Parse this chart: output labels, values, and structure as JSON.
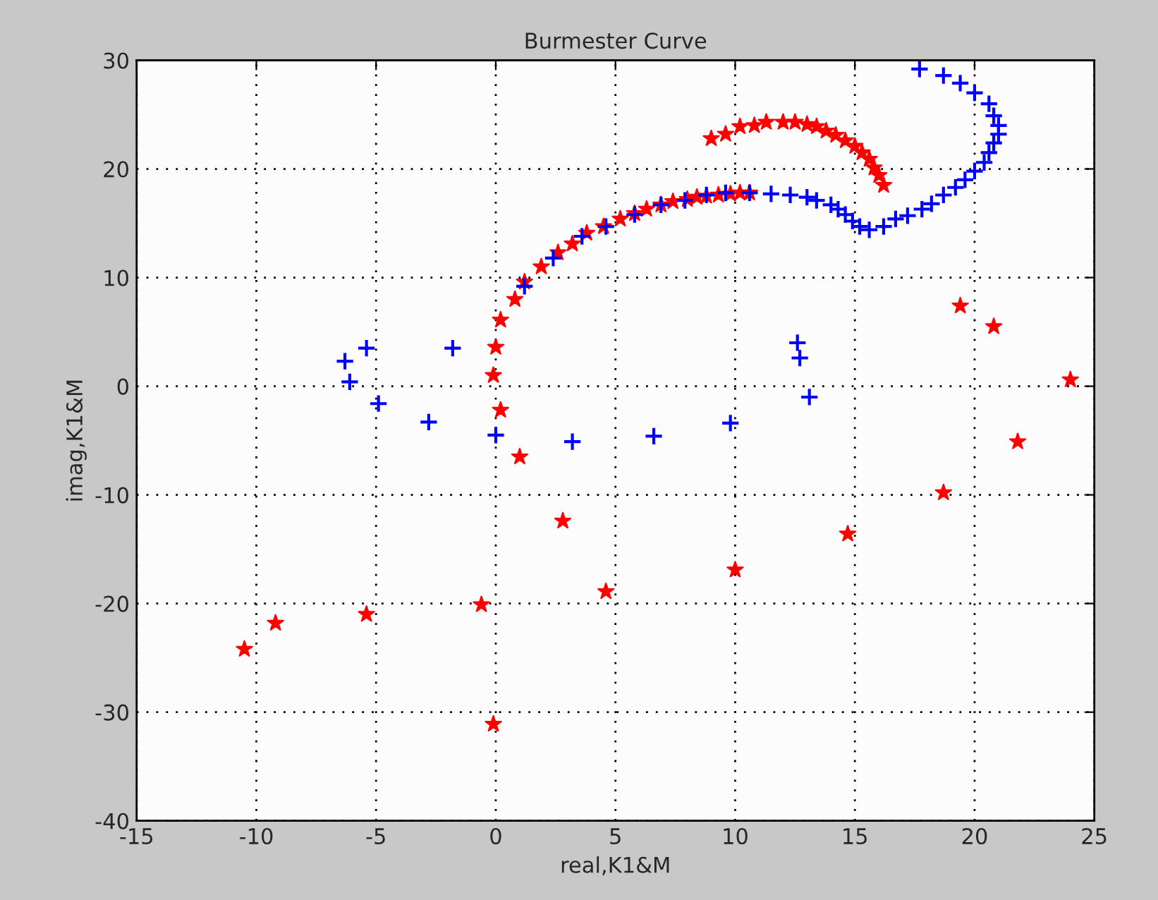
{
  "chart_data": {
    "type": "scatter",
    "title": "Burmester Curve",
    "xlabel": "real,K1&M",
    "ylabel": "imag,K1&M",
    "xlim": [
      -15,
      25
    ],
    "ylim": [
      -40,
      30
    ],
    "xticks": [
      -15,
      -10,
      -5,
      0,
      5,
      10,
      15,
      20,
      25
    ],
    "yticks": [
      -40,
      -30,
      -20,
      -10,
      0,
      10,
      20,
      30
    ],
    "grid": true,
    "series": [
      {
        "color": "#ff0000",
        "marker": "star",
        "x": [
          0,
          -0.1,
          0.2,
          1.0,
          2.8,
          4.6,
          -0.6,
          -5.4,
          -9.2,
          -10.5,
          -0.1,
          19.4,
          20.8,
          24.0,
          21.8,
          18.7,
          14.7,
          10.0,
          0.2,
          0.8,
          1.2,
          1.9,
          2.6,
          3.2,
          3.8,
          4.5,
          5.2,
          5.8,
          6.3,
          6.9,
          7.4,
          8.0,
          8.4,
          8.8,
          9.3,
          9.8,
          10.2,
          10.6,
          9.0,
          9.6,
          10.2,
          10.8,
          11.3,
          12.0,
          12.5,
          13.0,
          13.4,
          13.8,
          14.2,
          14.6,
          15.0,
          15.3,
          15.6,
          15.8,
          16.0,
          16.2
        ],
        "values": [
          3.6,
          1.0,
          -2.2,
          -6.5,
          -12.4,
          -18.9,
          -20.1,
          -21.0,
          -21.8,
          -24.2,
          -31.1,
          7.4,
          5.5,
          0.6,
          -5.1,
          -9.8,
          -13.6,
          -16.9,
          6.1,
          8.0,
          9.6,
          11.0,
          12.3,
          13.1,
          14.1,
          14.7,
          15.4,
          15.9,
          16.3,
          16.7,
          17.0,
          17.2,
          17.4,
          17.5,
          17.6,
          17.7,
          17.8,
          17.8,
          22.8,
          23.2,
          23.9,
          24.0,
          24.3,
          24.3,
          24.3,
          24.1,
          23.9,
          23.5,
          23.1,
          22.6,
          22.1,
          21.5,
          20.9,
          20.1,
          19.4,
          18.5
        ]
      },
      {
        "color": "#0000ff",
        "marker": "cross",
        "x": [
          -6.3,
          -5.4,
          -6.1,
          -4.9,
          -1.8,
          -2.8,
          0,
          3.2,
          6.6,
          9.8,
          12.6,
          12.7,
          13.1,
          1.2,
          2.4,
          3.6,
          4.6,
          5.8,
          6.9,
          7.9,
          8.8,
          9.6,
          10.6,
          11.5,
          12.3,
          13.0,
          13.4,
          14.0,
          14.3,
          14.6,
          14.9,
          15.2,
          15.6,
          16.2,
          16.7,
          17.2,
          17.8,
          18.2,
          18.7,
          19.2,
          19.6,
          20.0,
          20.4,
          20.6,
          20.8,
          21.0,
          21.0,
          20.8,
          20.6,
          20.0,
          19.4,
          18.7,
          17.7
        ],
        "values": [
          2.3,
          3.5,
          0.4,
          -1.6,
          3.5,
          -3.3,
          -4.5,
          -5.1,
          -4.6,
          -3.4,
          4.0,
          2.6,
          -1.0,
          9.2,
          11.8,
          13.8,
          14.7,
          15.8,
          16.7,
          17.1,
          17.6,
          17.8,
          17.8,
          17.7,
          17.6,
          17.4,
          17.1,
          16.7,
          16.3,
          15.8,
          15.2,
          14.7,
          14.4,
          14.7,
          15.4,
          15.7,
          16.3,
          16.8,
          17.6,
          18.3,
          19.0,
          19.8,
          20.6,
          21.5,
          22.4,
          23.2,
          24.0,
          24.9,
          26.0,
          27.0,
          27.9,
          28.6,
          29.2
        ]
      }
    ]
  }
}
